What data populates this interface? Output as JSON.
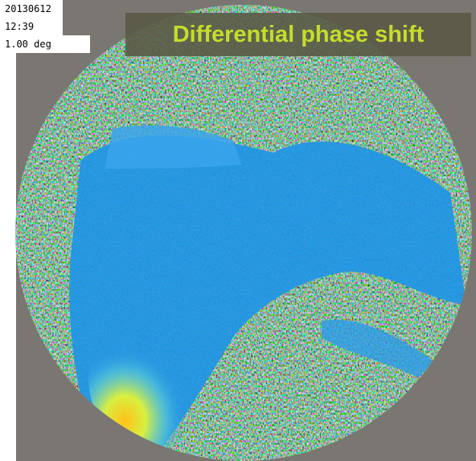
{
  "header": {
    "date": "20130612",
    "time": "12:39",
    "elevation": "1.00 deg"
  },
  "title": "Differential phase shift"
}
